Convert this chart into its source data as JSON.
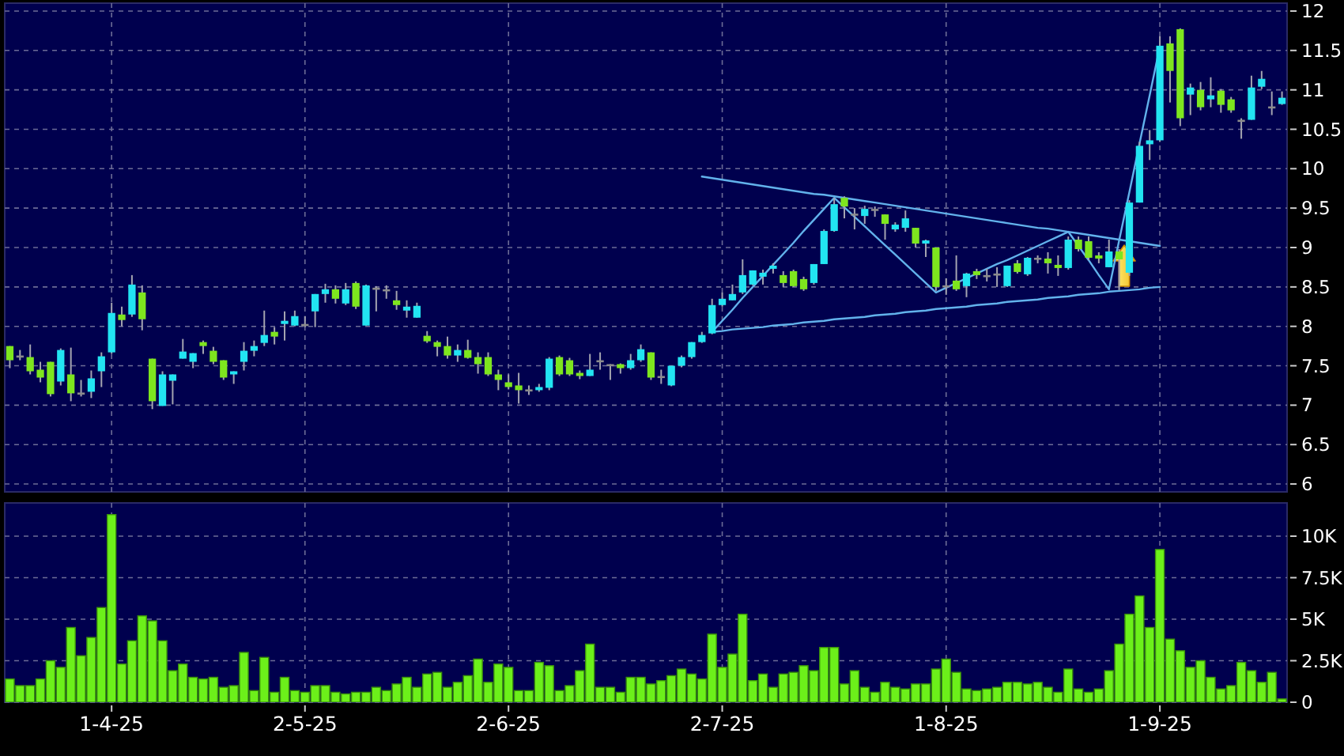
{
  "chart_data": [
    {
      "type": "candlestick",
      "categories": [
        null,
        null,
        null,
        null,
        null,
        null,
        null,
        null,
        null,
        null,
        null,
        null,
        null,
        null,
        null,
        null,
        null,
        null,
        null,
        null,
        null,
        null,
        null,
        null,
        null,
        null,
        null,
        null,
        null,
        null,
        null,
        null,
        null,
        null,
        null,
        null,
        null,
        null,
        null,
        null,
        null,
        null,
        null,
        null,
        null,
        null,
        null,
        null,
        null,
        null,
        null,
        null,
        null,
        null,
        null,
        null,
        null,
        null,
        null,
        null,
        null,
        null,
        null,
        null,
        null,
        null,
        null,
        null,
        null,
        null,
        null,
        null,
        null,
        null,
        null,
        null,
        null,
        null,
        null,
        null,
        null,
        null,
        null,
        null,
        null,
        null,
        null,
        null,
        null,
        null,
        null,
        null,
        null,
        null,
        null,
        null,
        null,
        null,
        null,
        null,
        null,
        null,
        null,
        null,
        null,
        null,
        null,
        null,
        null,
        null,
        null,
        null,
        null,
        null,
        null,
        null,
        null,
        null,
        null,
        null,
        null,
        null,
        null,
        null,
        null,
        null
      ],
      "ohlc": [
        [
          7.75,
          7.75,
          7.47,
          7.57
        ],
        [
          7.63,
          7.7,
          7.57,
          7.63
        ],
        [
          7.61,
          7.77,
          7.39,
          7.43
        ],
        [
          7.45,
          7.55,
          7.29,
          7.35
        ],
        [
          7.55,
          7.55,
          7.11,
          7.14
        ],
        [
          7.3,
          7.72,
          7.25,
          7.7
        ],
        [
          7.39,
          7.73,
          7.05,
          7.15
        ],
        [
          7.16,
          7.32,
          7.11,
          7.16
        ],
        [
          7.17,
          7.44,
          7.09,
          7.34
        ],
        [
          7.43,
          7.67,
          7.23,
          7.62
        ],
        [
          7.67,
          8.3,
          7.65,
          8.17
        ],
        [
          8.15,
          8.25,
          8.0,
          8.08
        ],
        [
          8.15,
          8.65,
          8.12,
          8.53
        ],
        [
          8.43,
          8.52,
          7.95,
          8.09
        ],
        [
          7.59,
          7.59,
          6.95,
          7.05
        ],
        [
          6.99,
          7.43,
          6.99,
          7.39
        ],
        [
          7.31,
          7.39,
          7.01,
          7.39
        ],
        [
          7.59,
          7.84,
          7.59,
          7.68
        ],
        [
          7.55,
          7.66,
          7.47,
          7.66
        ],
        [
          7.8,
          7.82,
          7.65,
          7.75
        ],
        [
          7.69,
          7.74,
          7.52,
          7.55
        ],
        [
          7.57,
          7.57,
          7.32,
          7.35
        ],
        [
          7.39,
          7.43,
          7.27,
          7.43
        ],
        [
          7.55,
          7.8,
          7.44,
          7.69
        ],
        [
          7.69,
          7.82,
          7.62,
          7.75
        ],
        [
          7.79,
          8.2,
          7.75,
          7.89
        ],
        [
          7.93,
          7.99,
          7.77,
          7.87
        ],
        [
          8.03,
          8.19,
          7.82,
          8.07
        ],
        [
          8.01,
          8.2,
          8.0,
          8.13
        ],
        [
          8.03,
          8.13,
          7.99,
          8.03
        ],
        [
          8.19,
          8.41,
          7.99,
          8.41
        ],
        [
          8.41,
          8.54,
          8.3,
          8.47
        ],
        [
          8.47,
          8.52,
          8.29,
          8.35
        ],
        [
          8.29,
          8.55,
          8.27,
          8.47
        ],
        [
          8.55,
          8.57,
          8.22,
          8.25
        ],
        [
          8.01,
          8.53,
          8.01,
          8.52
        ],
        [
          8.49,
          8.51,
          8.19,
          8.49
        ],
        [
          8.47,
          8.52,
          8.35,
          8.47
        ],
        [
          8.33,
          8.45,
          8.21,
          8.27
        ],
        [
          8.2,
          8.33,
          8.11,
          8.25
        ],
        [
          8.11,
          8.3,
          8.11,
          8.26
        ],
        [
          7.88,
          7.94,
          7.79,
          7.81
        ],
        [
          7.8,
          7.82,
          7.62,
          7.74
        ],
        [
          7.75,
          7.87,
          7.59,
          7.63
        ],
        [
          7.63,
          7.77,
          7.55,
          7.7
        ],
        [
          7.7,
          7.83,
          7.59,
          7.6
        ],
        [
          7.61,
          7.67,
          7.4,
          7.52
        ],
        [
          7.61,
          7.67,
          7.37,
          7.39
        ],
        [
          7.39,
          7.45,
          7.19,
          7.32
        ],
        [
          7.29,
          7.39,
          7.2,
          7.23
        ],
        [
          7.25,
          7.41,
          7.02,
          7.19
        ],
        [
          7.2,
          7.25,
          7.13,
          7.2
        ],
        [
          7.19,
          7.27,
          7.17,
          7.23
        ],
        [
          7.22,
          7.61,
          7.19,
          7.59
        ],
        [
          7.61,
          7.63,
          7.37,
          7.39
        ],
        [
          7.57,
          7.6,
          7.37,
          7.39
        ],
        [
          7.41,
          7.44,
          7.33,
          7.37
        ],
        [
          7.37,
          7.65,
          7.37,
          7.45
        ],
        [
          7.57,
          7.67,
          7.45,
          7.57
        ],
        [
          7.52,
          7.52,
          7.32,
          7.52
        ],
        [
          7.52,
          7.53,
          7.4,
          7.47
        ],
        [
          7.47,
          7.65,
          7.45,
          7.57
        ],
        [
          7.57,
          7.77,
          7.55,
          7.71
        ],
        [
          7.67,
          7.67,
          7.32,
          7.35
        ],
        [
          7.37,
          7.45,
          7.27,
          7.37
        ],
        [
          7.25,
          7.5,
          7.24,
          7.5
        ],
        [
          7.5,
          7.63,
          7.48,
          7.61
        ],
        [
          7.61,
          7.8,
          7.59,
          7.8
        ],
        [
          7.8,
          7.93,
          7.79,
          7.89
        ],
        [
          7.91,
          8.35,
          7.9,
          8.27
        ],
        [
          8.27,
          8.43,
          8.25,
          8.35
        ],
        [
          8.33,
          8.53,
          8.33,
          8.41
        ],
        [
          8.43,
          8.85,
          8.41,
          8.65
        ],
        [
          8.53,
          8.71,
          8.52,
          8.71
        ],
        [
          8.63,
          8.72,
          8.53,
          8.68
        ],
        [
          8.73,
          8.8,
          8.67,
          8.77
        ],
        [
          8.65,
          8.7,
          8.5,
          8.55
        ],
        [
          8.7,
          8.72,
          8.5,
          8.51
        ],
        [
          8.6,
          8.63,
          8.45,
          8.47
        ],
        [
          8.55,
          8.79,
          8.53,
          8.79
        ],
        [
          8.79,
          9.23,
          8.79,
          9.21
        ],
        [
          9.21,
          9.63,
          9.2,
          9.55
        ],
        [
          9.63,
          9.65,
          9.37,
          9.52
        ],
        [
          9.43,
          9.5,
          9.23,
          9.43
        ],
        [
          9.4,
          9.53,
          9.3,
          9.49
        ],
        [
          9.49,
          9.52,
          9.39,
          9.49
        ],
        [
          9.42,
          9.42,
          9.1,
          9.3
        ],
        [
          9.23,
          9.32,
          9.2,
          9.29
        ],
        [
          9.25,
          9.47,
          9.2,
          9.37
        ],
        [
          9.25,
          9.25,
          9.0,
          9.05
        ],
        [
          9.05,
          9.1,
          8.88,
          9.09
        ],
        [
          9.0,
          9.0,
          8.45,
          8.5
        ],
        [
          8.52,
          8.61,
          8.4,
          8.52
        ],
        [
          8.58,
          8.9,
          8.45,
          8.47
        ],
        [
          8.51,
          8.68,
          8.37,
          8.67
        ],
        [
          8.7,
          8.73,
          8.6,
          8.65
        ],
        [
          8.65,
          8.73,
          8.57,
          8.65
        ],
        [
          8.67,
          8.75,
          8.5,
          8.67
        ],
        [
          8.51,
          8.77,
          8.5,
          8.77
        ],
        [
          8.8,
          8.84,
          8.67,
          8.69
        ],
        [
          8.66,
          8.88,
          8.64,
          8.87
        ],
        [
          8.87,
          8.9,
          8.8,
          8.87
        ],
        [
          8.86,
          8.94,
          8.67,
          8.8
        ],
        [
          8.78,
          8.9,
          8.64,
          8.74
        ],
        [
          8.74,
          9.14,
          8.72,
          9.1
        ],
        [
          9.1,
          9.14,
          8.95,
          8.98
        ],
        [
          9.08,
          9.14,
          8.84,
          8.87
        ],
        [
          8.9,
          8.94,
          8.8,
          8.86
        ],
        [
          8.75,
          9.1,
          8.75,
          8.95
        ],
        [
          8.95,
          8.98,
          8.46,
          8.85
        ],
        [
          8.68,
          9.6,
          8.64,
          9.57
        ],
        [
          9.57,
          10.34,
          9.57,
          10.29
        ],
        [
          10.31,
          10.49,
          10.11,
          10.36
        ],
        [
          10.36,
          11.68,
          10.34,
          11.56
        ],
        [
          11.59,
          11.68,
          10.84,
          11.24
        ],
        [
          11.77,
          11.78,
          10.54,
          10.64
        ],
        [
          10.94,
          11.08,
          10.68,
          11.03
        ],
        [
          11.0,
          11.1,
          10.74,
          10.78
        ],
        [
          10.88,
          11.16,
          10.78,
          10.93
        ],
        [
          10.99,
          11.01,
          10.71,
          10.81
        ],
        [
          10.88,
          10.91,
          10.71,
          10.74
        ],
        [
          10.62,
          10.64,
          10.38,
          10.62
        ],
        [
          10.62,
          11.18,
          10.62,
          11.03
        ],
        [
          11.04,
          11.24,
          11.01,
          11.14
        ],
        [
          10.79,
          10.98,
          10.68,
          10.79
        ],
        [
          10.82,
          10.98,
          10.81,
          10.9
        ]
      ],
      "colors": [
        "#7ee61e",
        "#8c8c8c",
        "#7ee61e",
        "#7ee61e",
        "#7ee61e",
        "#22e4f2",
        "#7ee61e",
        "#8c8c8c",
        "#22e4f2",
        "#22e4f2",
        "#22e4f2",
        "#7ee61e",
        "#22e4f2",
        "#7ee61e",
        "#7ee61e",
        "#22e4f2",
        "#22e4f2",
        "#22e4f2",
        "#22e4f2",
        "#7ee61e",
        "#7ee61e",
        "#7ee61e",
        "#22e4f2",
        "#22e4f2",
        "#22e4f2",
        "#22e4f2",
        "#7ee61e",
        "#22e4f2",
        "#22e4f2",
        "#8c8c8c",
        "#22e4f2",
        "#22e4f2",
        "#7ee61e",
        "#22e4f2",
        "#7ee61e",
        "#22e4f2",
        "#8c8c8c",
        "#8c8c8c",
        "#7ee61e",
        "#22e4f2",
        "#22e4f2",
        "#7ee61e",
        "#7ee61e",
        "#7ee61e",
        "#22e4f2",
        "#7ee61e",
        "#7ee61e",
        "#7ee61e",
        "#7ee61e",
        "#7ee61e",
        "#7ee61e",
        "#8c8c8c",
        "#22e4f2",
        "#22e4f2",
        "#7ee61e",
        "#7ee61e",
        "#7ee61e",
        "#22e4f2",
        "#8c8c8c",
        "#8c8c8c",
        "#7ee61e",
        "#22e4f2",
        "#22e4f2",
        "#7ee61e",
        "#8c8c8c",
        "#22e4f2",
        "#22e4f2",
        "#22e4f2",
        "#22e4f2",
        "#22e4f2",
        "#22e4f2",
        "#22e4f2",
        "#22e4f2",
        "#22e4f2",
        "#22e4f2",
        "#22e4f2",
        "#7ee61e",
        "#7ee61e",
        "#7ee61e",
        "#22e4f2",
        "#22e4f2",
        "#22e4f2",
        "#7ee61e",
        "#8c8c8c",
        "#22e4f2",
        "#8c8c8c",
        "#7ee61e",
        "#22e4f2",
        "#22e4f2",
        "#7ee61e",
        "#22e4f2",
        "#7ee61e",
        "#8c8c8c",
        "#7ee61e",
        "#22e4f2",
        "#7ee61e",
        "#8c8c8c",
        "#8c8c8c",
        "#22e4f2",
        "#7ee61e",
        "#22e4f2",
        "#8c8c8c",
        "#7ee61e",
        "#7ee61e",
        "#22e4f2",
        "#7ee61e",
        "#7ee61e",
        "#7ee61e",
        "#22e4f2",
        "#7ee61e",
        "#22e4f2",
        "#22e4f2",
        "#22e4f2",
        "#22e4f2",
        "#7ee61e",
        "#7ee61e",
        "#22e4f2",
        "#7ee61e",
        "#22e4f2",
        "#7ee61e",
        "#7ee61e",
        "#8c8c8c",
        "#22e4f2",
        "#22e4f2",
        "#8c8c8c",
        "#22e4f2"
      ],
      "series": [
        {
          "type": "line",
          "color": "#62b2ec",
          "values": [
            null,
            null,
            null,
            null,
            null,
            null,
            null,
            null,
            null,
            null,
            null,
            null,
            null,
            null,
            null,
            null,
            null,
            null,
            null,
            null,
            null,
            null,
            null,
            null,
            null,
            null,
            null,
            null,
            null,
            null,
            null,
            null,
            null,
            null,
            null,
            null,
            null,
            null,
            null,
            null,
            null,
            null,
            null,
            null,
            null,
            null,
            null,
            null,
            null,
            null,
            null,
            null,
            null,
            null,
            null,
            null,
            null,
            null,
            null,
            null,
            null,
            null,
            null,
            null,
            null,
            null,
            null,
            null,
            9.9,
            9.88,
            9.86,
            9.84,
            9.82,
            9.8,
            9.78,
            9.76,
            9.74,
            9.72,
            9.7,
            9.68,
            9.67,
            9.65,
            9.63,
            9.61,
            9.59,
            9.57,
            9.55,
            9.53,
            9.51,
            9.49,
            9.47,
            9.45,
            9.43,
            9.41,
            9.39,
            9.37,
            9.35,
            9.33,
            9.31,
            9.29,
            9.27,
            9.25,
            9.24,
            9.22,
            9.2,
            9.18,
            9.16,
            9.14,
            9.12,
            9.1,
            9.08,
            9.06,
            9.04,
            9.02,
            null,
            null,
            null,
            null,
            null,
            null,
            null,
            null,
            null,
            null,
            null,
            null
          ]
        },
        {
          "type": "line",
          "color": "#62b2ec",
          "values": [
            null,
            null,
            null,
            null,
            null,
            null,
            null,
            null,
            null,
            null,
            null,
            null,
            null,
            null,
            null,
            null,
            null,
            null,
            null,
            null,
            null,
            null,
            null,
            null,
            null,
            null,
            null,
            null,
            null,
            null,
            null,
            null,
            null,
            null,
            null,
            null,
            null,
            null,
            null,
            null,
            null,
            null,
            null,
            null,
            null,
            null,
            null,
            null,
            null,
            null,
            null,
            null,
            null,
            null,
            null,
            null,
            null,
            null,
            null,
            null,
            null,
            null,
            null,
            null,
            null,
            null,
            null,
            null,
            null,
            7.93,
            7.94,
            7.96,
            7.97,
            7.98,
            7.99,
            8.01,
            8.02,
            8.03,
            8.05,
            8.06,
            8.07,
            8.09,
            8.1,
            8.11,
            8.12,
            8.14,
            8.15,
            8.16,
            8.18,
            8.19,
            8.2,
            8.22,
            8.23,
            8.24,
            8.25,
            8.27,
            8.28,
            8.29,
            8.31,
            8.32,
            8.33,
            8.34,
            8.36,
            8.37,
            8.38,
            8.4,
            8.41,
            8.42,
            8.44,
            8.45,
            8.46,
            8.47,
            8.49,
            8.5,
            null,
            null,
            null,
            null,
            null,
            null,
            null,
            null,
            null,
            null,
            null,
            null
          ]
        },
        {
          "type": "line",
          "color": "#62b2ec",
          "values": [
            null,
            null,
            null,
            null,
            null,
            null,
            null,
            null,
            null,
            null,
            null,
            null,
            null,
            null,
            null,
            null,
            null,
            null,
            null,
            null,
            null,
            null,
            null,
            null,
            null,
            null,
            null,
            null,
            null,
            null,
            null,
            null,
            null,
            null,
            null,
            null,
            null,
            null,
            null,
            null,
            null,
            null,
            null,
            null,
            null,
            null,
            null,
            null,
            null,
            null,
            null,
            null,
            null,
            null,
            null,
            null,
            null,
            null,
            null,
            null,
            null,
            null,
            null,
            null,
            null,
            null,
            null,
            null,
            null,
            7.93,
            8.07,
            8.21,
            8.36,
            8.5,
            8.64,
            8.78,
            8.92,
            9.06,
            9.21,
            9.35,
            9.49,
            9.63,
            9.51,
            9.39,
            9.27,
            9.15,
            9.03,
            8.91,
            8.79,
            8.67,
            8.55,
            8.43,
            8.49,
            8.55,
            8.61,
            8.67,
            8.73,
            8.79,
            8.84,
            8.9,
            8.96,
            9.02,
            9.08,
            9.14,
            9.2,
            9.02,
            8.84,
            8.65,
            8.47,
            9.09,
            9.7,
            10.32,
            10.93,
            11.55,
            null,
            null,
            null,
            null,
            null,
            null,
            null,
            null,
            null,
            null,
            null,
            null
          ]
        }
      ],
      "ylim": [
        5.9,
        12.1
      ],
      "yticks": [
        6,
        6.5,
        7,
        7.5,
        8,
        8.5,
        9,
        9.5,
        10,
        10.5,
        11,
        11.5,
        12
      ],
      "grid": true
    },
    {
      "type": "bar",
      "categories": [
        null,
        null,
        null,
        null,
        null,
        null,
        null,
        null,
        null,
        null,
        "1-4-25",
        null,
        null,
        null,
        null,
        null,
        null,
        null,
        null,
        null,
        null,
        null,
        null,
        null,
        null,
        null,
        null,
        null,
        null,
        "2-5-25",
        null,
        null,
        null,
        null,
        null,
        null,
        null,
        null,
        null,
        null,
        null,
        null,
        null,
        null,
        null,
        null,
        null,
        null,
        null,
        "2-6-25",
        null,
        null,
        null,
        null,
        null,
        null,
        null,
        null,
        null,
        null,
        null,
        null,
        null,
        null,
        null,
        null,
        null,
        null,
        null,
        null,
        "2-7-25",
        null,
        null,
        null,
        null,
        null,
        null,
        null,
        null,
        null,
        null,
        null,
        null,
        null,
        null,
        null,
        null,
        null,
        null,
        null,
        null,
        null,
        "1-8-25",
        null,
        null,
        null,
        null,
        null,
        null,
        null,
        null,
        null,
        null,
        null,
        null,
        null,
        null,
        null,
        null,
        null,
        null,
        null,
        null,
        "1-9-25",
        null,
        null,
        null,
        null,
        null,
        null,
        null,
        null,
        null,
        null,
        null,
        null
      ],
      "values": [
        1.4,
        1.0,
        1.0,
        1.4,
        2.5,
        2.1,
        4.5,
        2.8,
        3.9,
        5.7,
        11.3,
        2.3,
        3.7,
        5.2,
        4.9,
        3.7,
        1.9,
        2.3,
        1.5,
        1.4,
        1.5,
        0.9,
        1.0,
        3.0,
        0.7,
        2.7,
        0.6,
        1.5,
        0.7,
        0.6,
        1.0,
        1.0,
        0.6,
        0.5,
        0.6,
        0.6,
        0.9,
        0.7,
        1.1,
        1.5,
        0.9,
        1.7,
        1.8,
        0.9,
        1.2,
        1.6,
        2.6,
        1.2,
        2.3,
        2.1,
        0.7,
        0.7,
        2.4,
        2.2,
        0.7,
        1.0,
        1.9,
        3.5,
        0.9,
        0.9,
        0.6,
        1.5,
        1.5,
        1.1,
        1.3,
        1.6,
        2.0,
        1.7,
        1.4,
        4.1,
        2.1,
        2.9,
        5.3,
        1.3,
        1.7,
        0.9,
        1.7,
        1.8,
        2.2,
        1.9,
        3.3,
        3.3,
        1.1,
        1.9,
        0.9,
        0.6,
        1.2,
        0.9,
        0.8,
        1.1,
        1.1,
        2.0,
        2.6,
        1.8,
        0.8,
        0.7,
        0.8,
        0.9,
        1.2,
        1.2,
        1.1,
        1.2,
        0.9,
        0.6,
        2.0,
        0.8,
        0.6,
        0.8,
        1.9,
        3.5,
        5.3,
        6.4,
        4.5,
        9.2,
        3.8,
        3.1,
        2.1,
        2.5,
        1.5,
        0.8,
        1.0,
        2.4,
        1.9,
        1.2,
        1.8,
        0.2
      ],
      "color": "#6cf01a",
      "ylim": [
        0,
        12
      ],
      "yticks": [
        0,
        {
          "value": 2.5,
          "label": "2.5K"
        },
        {
          "value": 5,
          "label": "5K"
        },
        {
          "value": 7.5,
          "label": "7.5K"
        },
        {
          "value": 10,
          "label": "10K"
        }
      ],
      "grid": true
    }
  ]
}
